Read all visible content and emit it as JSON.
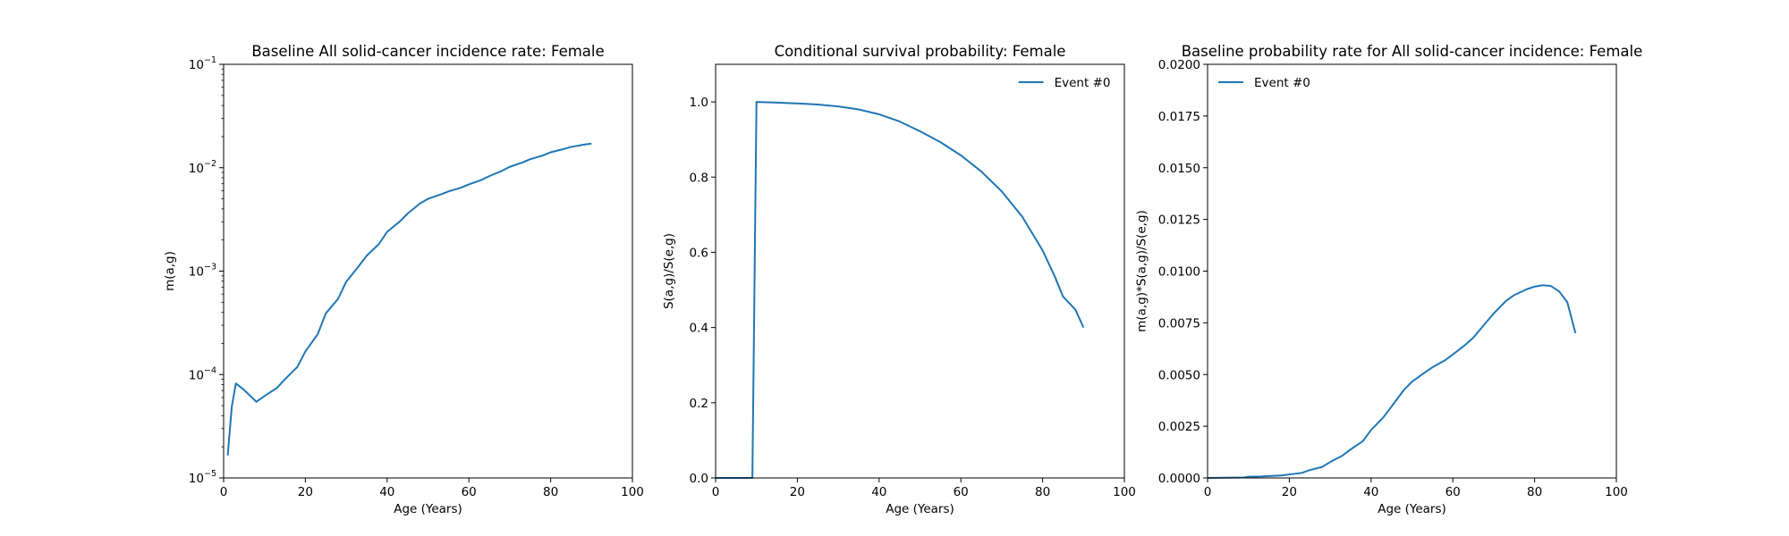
{
  "chart_data": [
    {
      "type": "line",
      "title": "Baseline All solid-cancer incidence rate: Female",
      "xlabel": "Age (Years)",
      "ylabel": "m(a,g)",
      "xlim": [
        0,
        100
      ],
      "ylim": [
        1e-05,
        0.1
      ],
      "yscale": "log",
      "x_ticks": [
        "0",
        "20",
        "40",
        "60",
        "80",
        "100"
      ],
      "y_ticks": [
        {
          "base": "10",
          "exp": "−1"
        },
        {
          "base": "10",
          "exp": "−2"
        },
        {
          "base": "10",
          "exp": "−3"
        },
        {
          "base": "10",
          "exp": "−4"
        },
        {
          "base": "10",
          "exp": "−5"
        }
      ],
      "legend": null,
      "color": "#1f77b4",
      "series": [
        {
          "x": [
            1,
            2,
            3,
            5,
            8,
            10,
            13,
            15,
            18,
            20,
            23,
            25,
            28,
            30,
            33,
            35,
            38,
            40,
            43,
            45,
            48,
            50,
            53,
            55,
            58,
            60,
            63,
            65,
            68,
            70,
            73,
            75,
            78,
            80,
            83,
            85,
            88,
            90
          ],
          "values": [
            1.65e-05,
            4.9e-05,
            8.2e-05,
            7.1e-05,
            5.45e-05,
            6.2e-05,
            7.4e-05,
            9e-05,
            0.000118,
            0.000167,
            0.000245,
            0.00039,
            0.00054,
            0.00079,
            0.00111,
            0.00141,
            0.00183,
            0.0024,
            0.003,
            0.0036,
            0.0045,
            0.005,
            0.0055,
            0.0059,
            0.0064,
            0.0069,
            0.0076,
            0.0083,
            0.0093,
            0.0102,
            0.0112,
            0.0121,
            0.0131,
            0.0141,
            0.0151,
            0.0159,
            0.0167,
            0.0171
          ]
        }
      ]
    },
    {
      "type": "line",
      "title": "Conditional survival probability: Female",
      "xlabel": "Age (Years)",
      "ylabel": "S(a,g)/S(e,g)",
      "xlim": [
        0,
        100
      ],
      "ylim": [
        0,
        1.1
      ],
      "yscale": "linear",
      "x_ticks": [
        "0",
        "20",
        "40",
        "60",
        "80",
        "100"
      ],
      "y_ticks": [
        "0.0",
        "0.2",
        "0.4",
        "0.6",
        "0.8",
        "1.0"
      ],
      "legend": "top-right",
      "color": "#1f77b4",
      "series": [
        {
          "name": "Event #0",
          "x": [
            0,
            9,
            10,
            15,
            20,
            25,
            30,
            35,
            40,
            45,
            50,
            55,
            60,
            65,
            70,
            75,
            80,
            83,
            85,
            88,
            90
          ],
          "values": [
            0,
            0,
            1.0,
            0.998,
            0.996,
            0.993,
            0.988,
            0.98,
            0.967,
            0.948,
            0.922,
            0.893,
            0.858,
            0.815,
            0.762,
            0.695,
            0.605,
            0.535,
            0.482,
            0.448,
            0.4
          ]
        }
      ]
    },
    {
      "type": "line",
      "title": "Baseline probability rate for All solid-cancer incidence: Female",
      "xlabel": "Age (Years)",
      "ylabel": "m(a,g)*S(a,g)/S(e,g)",
      "xlim": [
        0,
        100
      ],
      "ylim": [
        0,
        0.02
      ],
      "yscale": "linear",
      "x_ticks": [
        "0",
        "20",
        "40",
        "60",
        "80",
        "100"
      ],
      "y_ticks": [
        "0.0000",
        "0.0025",
        "0.0050",
        "0.0075",
        "0.0100",
        "0.0125",
        "0.0150",
        "0.0175",
        "0.0200"
      ],
      "legend": "top-left",
      "color": "#1f77b4",
      "series": [
        {
          "name": "Event #0",
          "x": [
            0,
            9,
            10,
            13,
            15,
            18,
            20,
            23,
            25,
            28,
            30,
            33,
            35,
            38,
            40,
            43,
            45,
            48,
            50,
            53,
            55,
            58,
            60,
            63,
            65,
            68,
            70,
            73,
            75,
            78,
            80,
            82,
            84,
            86,
            88,
            90
          ],
          "values": [
            0,
            2e-05,
            6e-05,
            7e-05,
            9e-05,
            0.00012,
            0.00017,
            0.00024,
            0.00038,
            0.00053,
            0.00077,
            0.00108,
            0.00138,
            0.00178,
            0.00232,
            0.00293,
            0.00345,
            0.00425,
            0.00465,
            0.00508,
            0.00535,
            0.00568,
            0.00597,
            0.00643,
            0.00678,
            0.00749,
            0.00795,
            0.00856,
            0.00884,
            0.00912,
            0.00925,
            0.00932,
            0.00928,
            0.00902,
            0.0085,
            0.007
          ]
        }
      ]
    }
  ]
}
